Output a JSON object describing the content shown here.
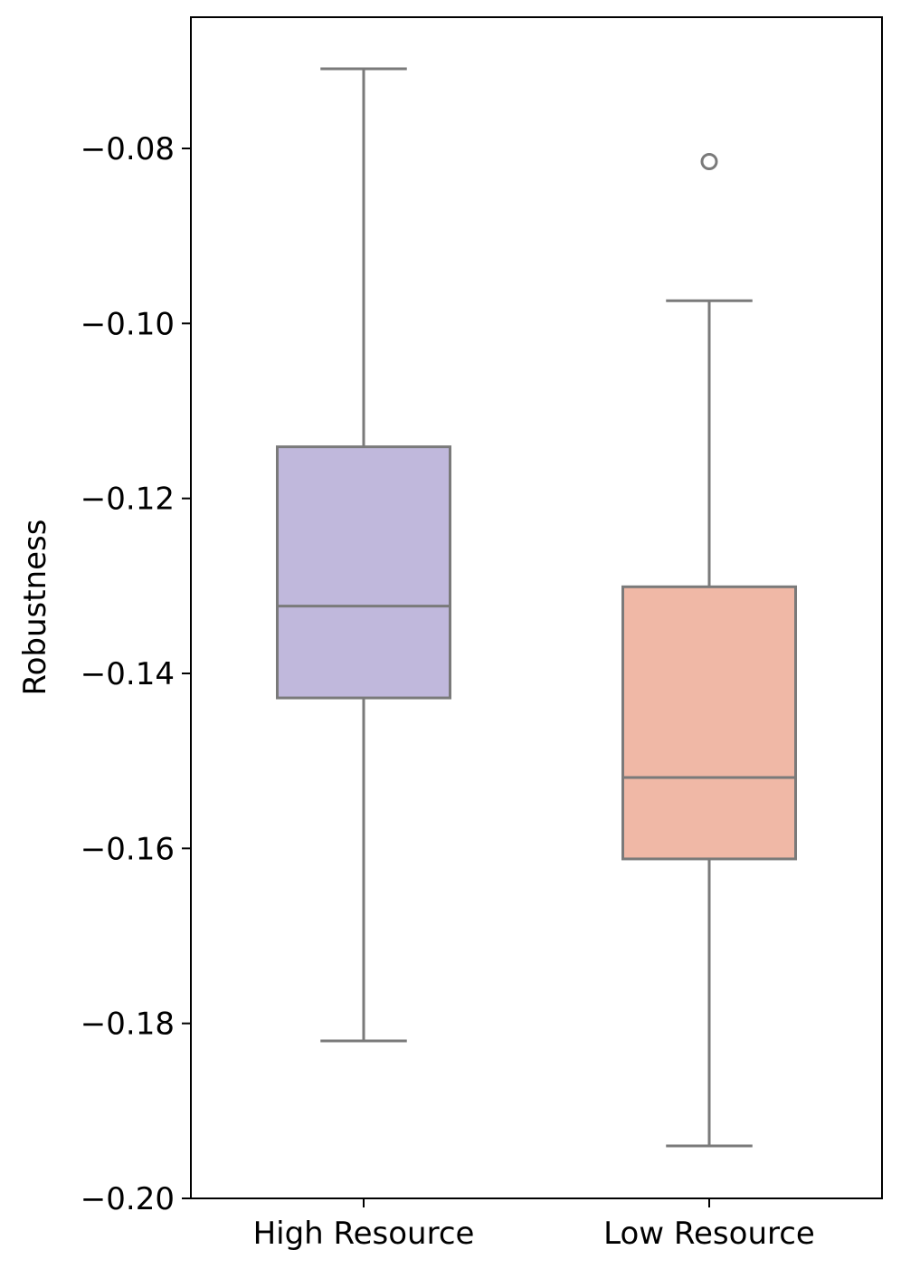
{
  "chart_data": {
    "type": "box",
    "title": "",
    "xlabel": "",
    "ylabel": "Robustness",
    "ylim": [
      -0.2,
      -0.065
    ],
    "yticks": [
      -0.08,
      -0.1,
      -0.12,
      -0.14,
      -0.16,
      -0.18,
      -0.2
    ],
    "ytick_labels": [
      "−0.08",
      "−0.10",
      "−0.12",
      "−0.14",
      "−0.16",
      "−0.18",
      "−0.20"
    ],
    "categories": [
      "High Resource",
      "Low Resource"
    ],
    "boxes": [
      {
        "category": "High Resource",
        "whisker_low": -0.182,
        "q1": -0.1428,
        "median": -0.1323,
        "q3": -0.1141,
        "whisker_high": -0.0709,
        "outliers": [],
        "color": "#c0b8dc"
      },
      {
        "category": "Low Resource",
        "whisker_low": -0.194,
        "q1": -0.1612,
        "median": -0.1519,
        "q3": -0.1301,
        "whisker_high": -0.0974,
        "outliers": [
          -0.0815
        ],
        "color": "#f0b8a6"
      }
    ],
    "line_color": "#7a7a7a",
    "grid": false
  }
}
